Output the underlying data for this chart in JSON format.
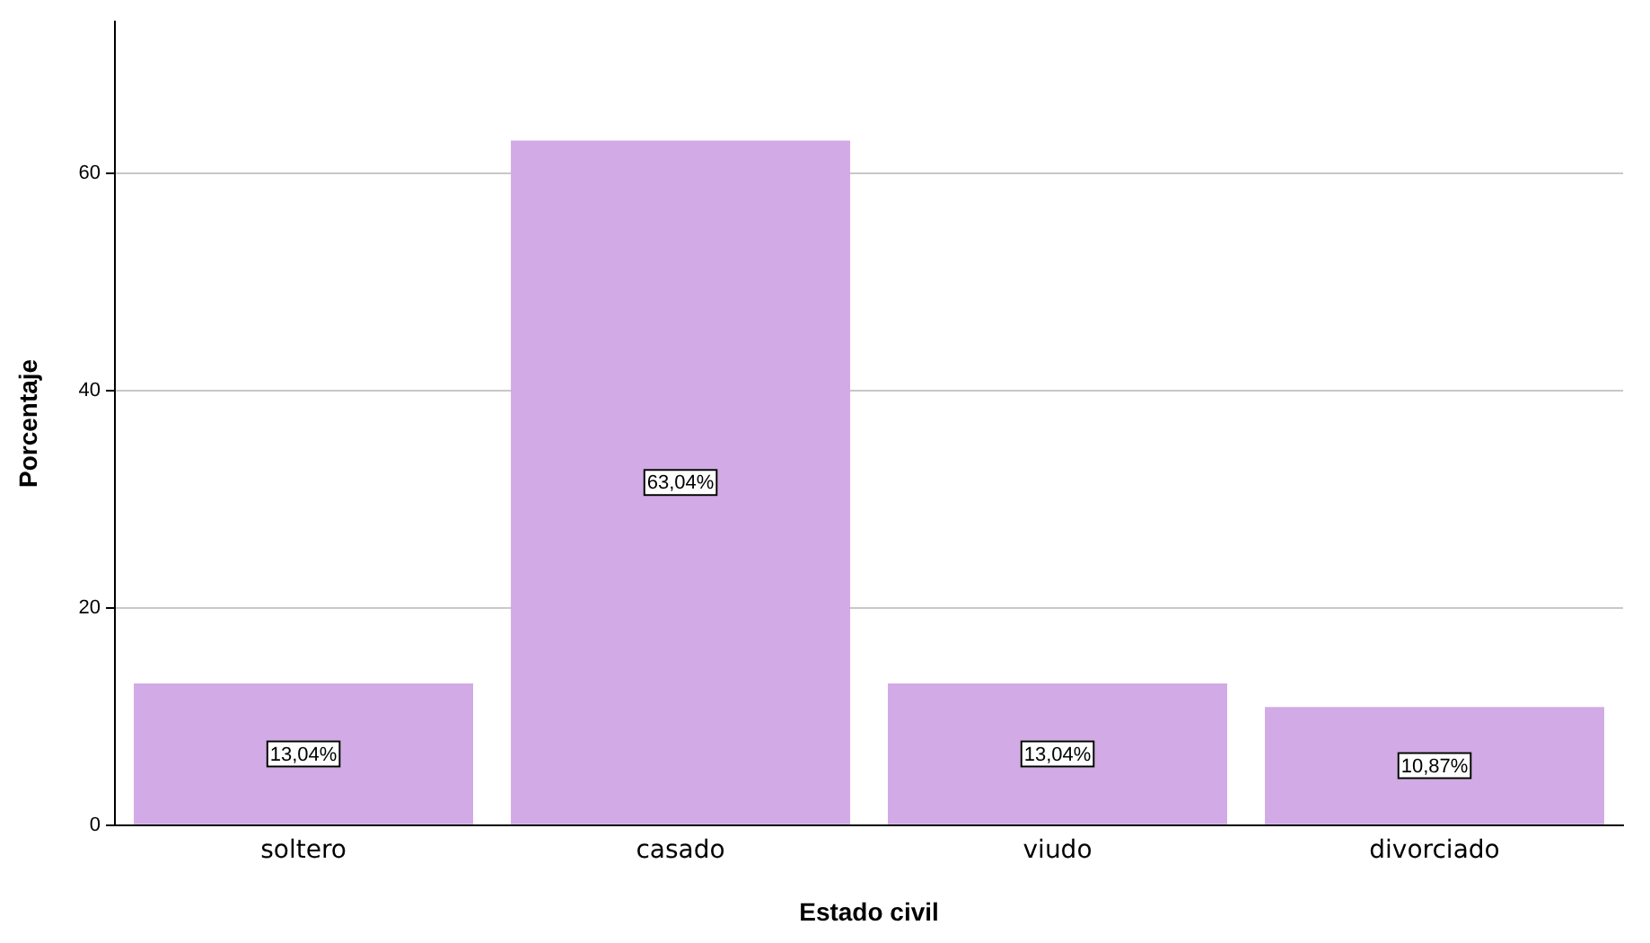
{
  "chart_data": {
    "type": "bar",
    "xlabel": "Estado civil",
    "ylabel": "Porcentaje",
    "categories": [
      "soltero",
      "casado",
      "viudo",
      "divorciado"
    ],
    "values": [
      13.04,
      63.04,
      13.04,
      10.87
    ],
    "value_labels": [
      "13,04%",
      "63,04%",
      "13,04%",
      "10,87%"
    ],
    "color": "#d2aae6",
    "ylim": [
      0,
      74
    ],
    "yticks": [
      0,
      20,
      40,
      60
    ],
    "grid": "y",
    "legend": false
  }
}
